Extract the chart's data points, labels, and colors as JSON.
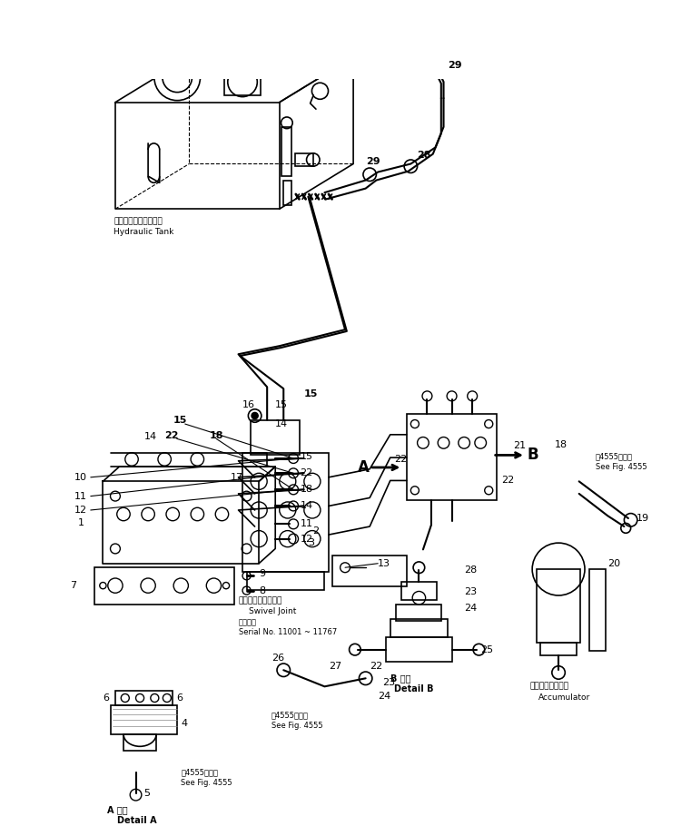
{
  "bg_color": "#ffffff",
  "line_color": "#000000",
  "figsize": [
    7.61,
    9.1
  ],
  "dpi": 100,
  "labels": {
    "hydraulic_tank_jp": "ハイドロリックタンク",
    "hydraulic_tank_en": "Hydraulic Tank",
    "swivel_joint_jp": "スイベルジョイント",
    "swivel_joint_en": "Swivel Joint",
    "serial_jp": "適用号機",
    "serial_no": "Serial No. 11001 ~ 11767",
    "detail_a_jp": "A 詳細",
    "detail_a_en": "Detail A",
    "detail_b_jp": "B 詳細",
    "detail_b_en": "Detail B",
    "see_fig_4555_jp": "図4555図参照",
    "see_fig_4555_en": "See Fig. 4555",
    "accumulator_jp": "アキュームレータ",
    "accumulator_en": "Accumulator",
    "see_fig_4555b_jp": "図4555図参照",
    "see_fig_4555b_en": "See Fig. 4555"
  }
}
